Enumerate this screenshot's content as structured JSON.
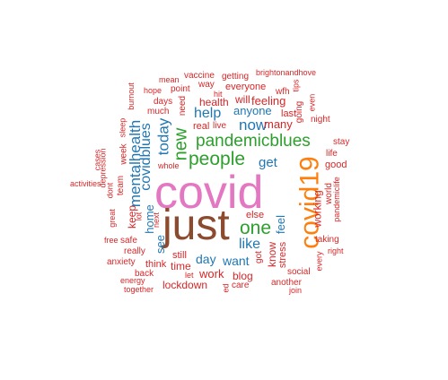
{
  "colors": {
    "pink": "#e377c2",
    "brown": "#8c4a2f",
    "orange": "#ff7f0e",
    "green": "#2ca02c",
    "blue": "#1f77b4",
    "red": "#d62728"
  },
  "words": [
    {
      "text": "covid",
      "color": "pink"
    },
    {
      "text": "just",
      "color": "brown"
    },
    {
      "text": "covid19",
      "color": "orange"
    },
    {
      "text": "pandemicblues",
      "color": "green"
    },
    {
      "text": "people",
      "color": "green"
    },
    {
      "text": "new",
      "color": "green"
    },
    {
      "text": "one",
      "color": "green"
    },
    {
      "text": "mentalhealth",
      "color": "blue"
    },
    {
      "text": "covidblues",
      "color": "blue"
    },
    {
      "text": "today",
      "color": "blue"
    },
    {
      "text": "now",
      "color": "blue"
    },
    {
      "text": "help",
      "color": "blue"
    },
    {
      "text": "get",
      "color": "blue"
    },
    {
      "text": "like",
      "color": "blue"
    },
    {
      "text": "home",
      "color": "blue"
    },
    {
      "text": "day",
      "color": "blue"
    },
    {
      "text": "want",
      "color": "blue"
    },
    {
      "text": "see",
      "color": "blue"
    },
    {
      "text": "feel",
      "color": "blue"
    },
    {
      "text": "anyone",
      "color": "blue"
    },
    {
      "text": "health",
      "color": "red"
    },
    {
      "text": "feeling",
      "color": "red"
    },
    {
      "text": "will",
      "color": "red"
    },
    {
      "text": "many",
      "color": "red"
    },
    {
      "text": "real",
      "color": "red"
    },
    {
      "text": "live",
      "color": "red"
    },
    {
      "text": "life",
      "color": "red"
    },
    {
      "text": "good",
      "color": "red"
    },
    {
      "text": "work",
      "color": "red"
    },
    {
      "text": "blog",
      "color": "red"
    },
    {
      "text": "working",
      "color": "red"
    },
    {
      "text": "know",
      "color": "red"
    },
    {
      "text": "else",
      "color": "red"
    },
    {
      "text": "last",
      "color": "red"
    },
    {
      "text": "everyone",
      "color": "red"
    },
    {
      "text": "keep",
      "color": "red"
    },
    {
      "text": "time",
      "color": "red"
    },
    {
      "text": "lockdown",
      "color": "red"
    },
    {
      "text": "think",
      "color": "red"
    },
    {
      "text": "still",
      "color": "red"
    },
    {
      "text": "stress",
      "color": "red"
    },
    {
      "text": "getting",
      "color": "red"
    },
    {
      "text": "vaccine",
      "color": "red"
    },
    {
      "text": "way",
      "color": "red"
    },
    {
      "text": "point",
      "color": "red"
    },
    {
      "text": "mean",
      "color": "red"
    },
    {
      "text": "hope",
      "color": "red"
    },
    {
      "text": "days",
      "color": "red"
    },
    {
      "text": "much",
      "color": "red"
    },
    {
      "text": "need",
      "color": "red"
    },
    {
      "text": "hit",
      "color": "red"
    },
    {
      "text": "wfh",
      "color": "red"
    },
    {
      "text": "tips",
      "color": "red"
    },
    {
      "text": "going",
      "color": "red"
    },
    {
      "text": "even",
      "color": "red"
    },
    {
      "text": "night",
      "color": "red"
    },
    {
      "text": "stay",
      "color": "red"
    },
    {
      "text": "brightonandhove",
      "color": "red"
    },
    {
      "text": "burnout",
      "color": "red"
    },
    {
      "text": "sleep",
      "color": "red"
    },
    {
      "text": "week",
      "color": "red"
    },
    {
      "text": "depression",
      "color": "red"
    },
    {
      "text": "cases",
      "color": "red"
    },
    {
      "text": "team",
      "color": "red"
    },
    {
      "text": "dont",
      "color": "red"
    },
    {
      "text": "activities",
      "color": "red"
    },
    {
      "text": "great",
      "color": "red"
    },
    {
      "text": "lot",
      "color": "red"
    },
    {
      "text": "whole",
      "color": "red"
    },
    {
      "text": "next",
      "color": "red"
    },
    {
      "text": "free",
      "color": "red"
    },
    {
      "text": "safe",
      "color": "red"
    },
    {
      "text": "really",
      "color": "red"
    },
    {
      "text": "anxiety",
      "color": "red"
    },
    {
      "text": "back",
      "color": "red"
    },
    {
      "text": "energy",
      "color": "red"
    },
    {
      "text": "together",
      "color": "red"
    },
    {
      "text": "let",
      "color": "red"
    },
    {
      "text": "got",
      "color": "red"
    },
    {
      "text": "care",
      "color": "red"
    },
    {
      "text": "another",
      "color": "red"
    },
    {
      "text": "join",
      "color": "red"
    },
    {
      "text": "social",
      "color": "red"
    },
    {
      "text": "every",
      "color": "red"
    },
    {
      "text": "taking",
      "color": "red"
    },
    {
      "text": "right",
      "color": "red"
    },
    {
      "text": "world",
      "color": "red"
    },
    {
      "text": "pandemiclife",
      "color": "red"
    },
    {
      "text": "ed",
      "color": "red"
    }
  ]
}
